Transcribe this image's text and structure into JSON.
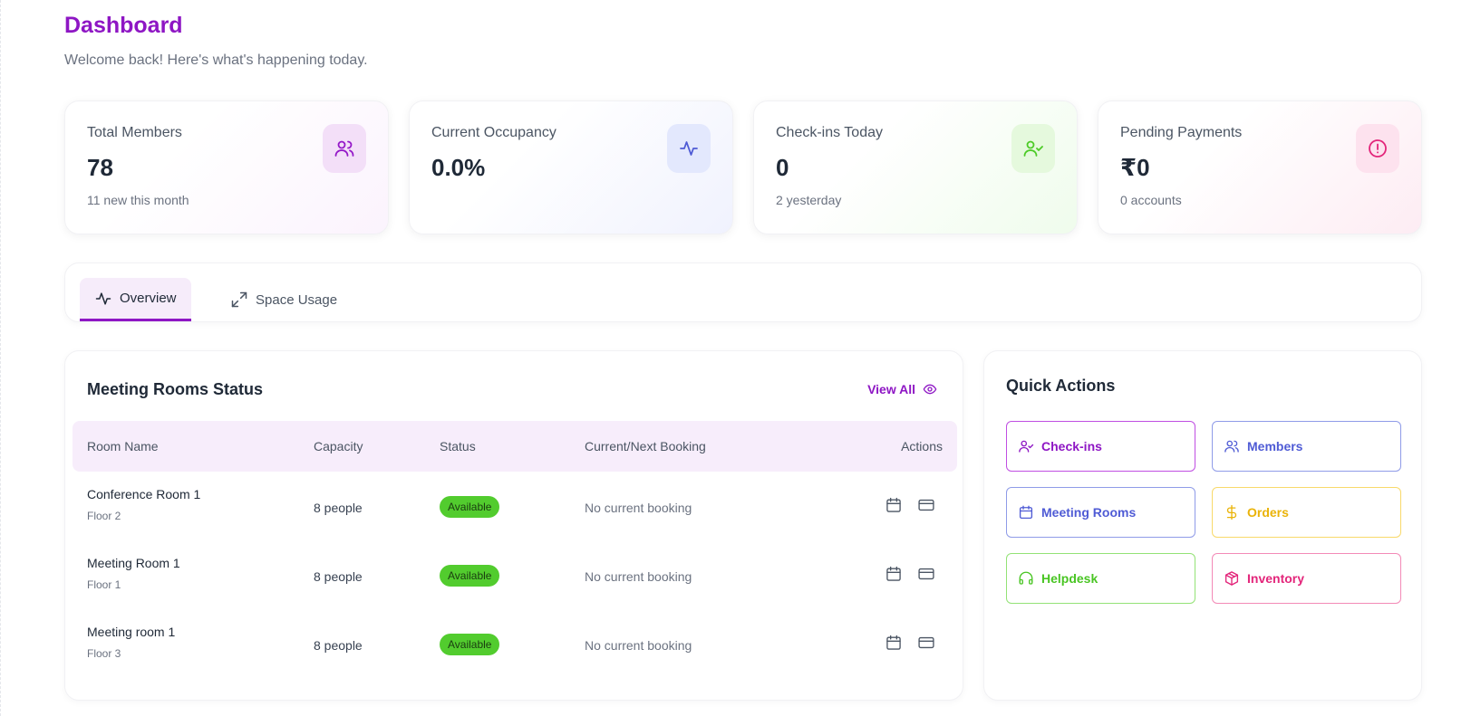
{
  "header": {
    "title": "Dashboard",
    "subtitle": "Welcome back! Here's what's happening today."
  },
  "stats": [
    {
      "label": "Total Members",
      "value": "78",
      "note": "11 new this month",
      "icon": "users-icon",
      "color": "#9417c8"
    },
    {
      "label": "Current Occupancy",
      "value": "0.0%",
      "note": "",
      "icon": "activity-icon",
      "color": "#4f5bd5"
    },
    {
      "label": "Check-ins Today",
      "value": "0",
      "note": "2 yesterday",
      "icon": "user-check-icon",
      "color": "#4ccb26"
    },
    {
      "label": "Pending Payments",
      "value": "₹0",
      "note": "0 accounts",
      "icon": "alert-circle-icon",
      "color": "#e3257a"
    }
  ],
  "tabs": [
    {
      "label": "Overview",
      "icon": "activity-icon",
      "active": true
    },
    {
      "label": "Space Usage",
      "icon": "expand-icon",
      "active": false
    }
  ],
  "rooms": {
    "title": "Meeting Rooms Status",
    "view_all": "View All",
    "columns": [
      "Room Name",
      "Capacity",
      "Status",
      "Current/Next Booking",
      "Actions"
    ],
    "rows": [
      {
        "name": "Conference Room 1",
        "floor": "Floor 2",
        "capacity": "8 people",
        "status": "Available",
        "booking": "No current booking"
      },
      {
        "name": "Meeting Room 1",
        "floor": "Floor 1",
        "capacity": "8 people",
        "status": "Available",
        "booking": "No current booking"
      },
      {
        "name": "Meeting room 1",
        "floor": "Floor 3",
        "capacity": "8 people",
        "status": "Available",
        "booking": "No current booking"
      }
    ]
  },
  "quick_actions": {
    "title": "Quick Actions",
    "items": [
      {
        "label": "Check-ins",
        "icon": "user-check-icon",
        "color": "#8e16c4"
      },
      {
        "label": "Members",
        "icon": "users-icon",
        "color": "#4f5bd5"
      },
      {
        "label": "Meeting Rooms",
        "icon": "calendar-icon",
        "color": "#4f5bd5"
      },
      {
        "label": "Orders",
        "icon": "dollar-icon",
        "color": "#eab308"
      },
      {
        "label": "Helpdesk",
        "icon": "headphones-icon",
        "color": "#49c523"
      },
      {
        "label": "Inventory",
        "icon": "package-icon",
        "color": "#e3257a"
      }
    ]
  }
}
